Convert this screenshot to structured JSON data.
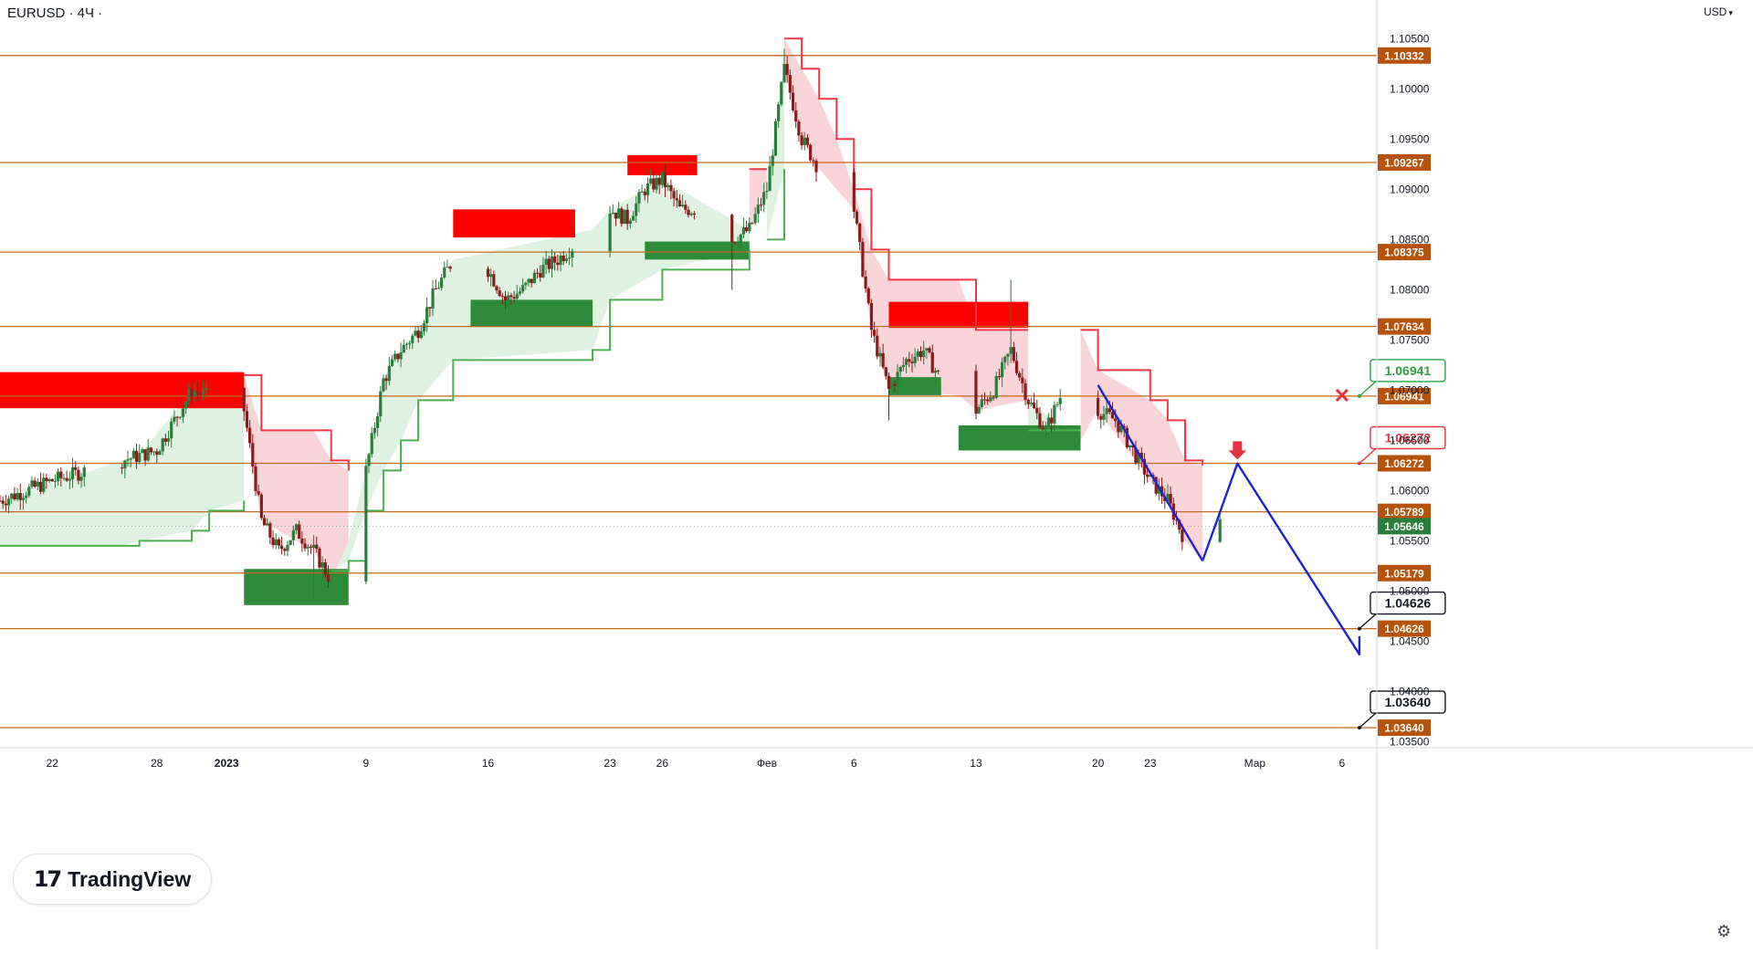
{
  "header": {
    "symbol": "EURUSD · 4Ч ·",
    "currency": "USD",
    "currency_chevron": "▾"
  },
  "logo": {
    "mark": "17",
    "text": "TradingView"
  },
  "settings_icon": "gear-icon",
  "colors": {
    "level_line": "#c26a1e",
    "level_tag": "#b45309",
    "supply_zone": "#ff0000",
    "demand_zone": "#2e8b3a",
    "bull_trail": "#4caf50",
    "bull_fill": "#d9f0dc",
    "bear_trail": "#f23645",
    "bear_fill": "#f8cdd2",
    "projection": "#1e22d6",
    "candle_up": "#2a7d3a",
    "candle_down": "#8b1a1a",
    "callout_green": "#2e9e42",
    "callout_red": "#e5343f",
    "callout_black": "#131722"
  },
  "chart_data": {
    "type": "candlestick",
    "symbol": "EURUSD",
    "timeframe": "4Ч",
    "price_axis": {
      "ylim": [
        1.0345,
        1.1063
      ],
      "ticks": [
        "1.10500",
        "1.10000",
        "1.09500",
        "1.09000",
        "1.08500",
        "1.08000",
        "1.07500",
        "1.07000",
        "1.06500",
        "1.06000",
        "1.05500",
        "1.05000",
        "1.04500",
        "1.04000",
        "1.03500"
      ],
      "current_price": "1.05646"
    },
    "time_axis": {
      "range": [
        "2022-12-19",
        "2023-03-08"
      ],
      "ticks": [
        {
          "label": "22",
          "date": "2022-12-22"
        },
        {
          "label": "28",
          "date": "2022-12-28"
        },
        {
          "label": "2023",
          "date": "2023-01-01",
          "bold": true
        },
        {
          "label": "9",
          "date": "2023-01-09"
        },
        {
          "label": "16",
          "date": "2023-01-16"
        },
        {
          "label": "23",
          "date": "2023-01-23"
        },
        {
          "label": "26",
          "date": "2023-01-26"
        },
        {
          "label": "Фев",
          "date": "2023-02-01"
        },
        {
          "label": "6",
          "date": "2023-02-06"
        },
        {
          "label": "13",
          "date": "2023-02-13"
        },
        {
          "label": "20",
          "date": "2023-02-20"
        },
        {
          "label": "23",
          "date": "2023-02-23"
        },
        {
          "label": "Мар",
          "date": "2023-03-01"
        },
        {
          "label": "6",
          "date": "2023-03-06"
        }
      ]
    },
    "price_path": [
      [
        "2022-12-19",
        1.059
      ],
      [
        "2022-12-22",
        1.061
      ],
      [
        "2022-12-26",
        1.063
      ],
      [
        "2022-12-28",
        1.064
      ],
      [
        "2022-12-30",
        1.07
      ],
      [
        "2023-01-02",
        1.068
      ],
      [
        "2023-01-03",
        1.057
      ],
      [
        "2023-01-04",
        1.054
      ],
      [
        "2023-01-05",
        1.056
      ],
      [
        "2023-01-06",
        1.054
      ],
      [
        "2023-01-07",
        1.051
      ],
      [
        "2023-01-08",
        1.055
      ],
      [
        "2023-01-09",
        1.062
      ],
      [
        "2023-01-10",
        1.071
      ],
      [
        "2023-01-11",
        1.074
      ],
      [
        "2023-01-12",
        1.076
      ],
      [
        "2023-01-13",
        1.08
      ],
      [
        "2023-01-14",
        1.083
      ],
      [
        "2023-01-16",
        1.082
      ],
      [
        "2023-01-17",
        1.079
      ],
      [
        "2023-01-18",
        1.08
      ],
      [
        "2023-01-19",
        1.082
      ],
      [
        "2023-01-20",
        1.083
      ],
      [
        "2023-01-22",
        1.086
      ],
      [
        "2023-01-23",
        1.088
      ],
      [
        "2023-01-24",
        1.087
      ],
      [
        "2023-01-25",
        1.09
      ],
      [
        "2023-01-26",
        1.091
      ],
      [
        "2023-01-27",
        1.088
      ],
      [
        "2023-01-29",
        1.088
      ],
      [
        "2023-01-30",
        1.085
      ],
      [
        "2023-01-31",
        1.086
      ],
      [
        "2023-02-01",
        1.09
      ],
      [
        "2023-02-02",
        1.102
      ],
      [
        "2023-02-03",
        1.095
      ],
      [
        "2023-02-04",
        1.092
      ],
      [
        "2023-02-06",
        1.088
      ],
      [
        "2023-02-07",
        1.076
      ],
      [
        "2023-02-08",
        1.07
      ],
      [
        "2023-02-09",
        1.073
      ],
      [
        "2023-02-10",
        1.074
      ],
      [
        "2023-02-11",
        1.071
      ],
      [
        "2023-02-13",
        1.068
      ],
      [
        "2023-02-14",
        1.07
      ],
      [
        "2023-02-15",
        1.074
      ],
      [
        "2023-02-16",
        1.069
      ],
      [
        "2023-02-17",
        1.066
      ],
      [
        "2023-02-18",
        1.07
      ],
      [
        "2023-02-19",
        1.065
      ],
      [
        "2023-02-20",
        1.068
      ],
      [
        "2023-02-21",
        1.067
      ],
      [
        "2023-02-22",
        1.064
      ],
      [
        "2023-02-23",
        1.061
      ],
      [
        "2023-02-24",
        1.059
      ],
      [
        "2023-02-25",
        1.055
      ],
      [
        "2023-02-26",
        1.053
      ],
      [
        "2023-02-27",
        1.0565
      ]
    ],
    "price_spikes": [
      [
        "2023-01-06",
        1.049
      ],
      [
        "2023-01-30",
        1.08
      ],
      [
        "2023-02-02",
        1.104
      ],
      [
        "2023-02-08",
        1.067
      ],
      [
        "2023-02-15",
        1.081
      ],
      [
        "2023-02-19",
        1.062
      ]
    ],
    "levels": [
      {
        "price": 1.10332,
        "label": "1.10332"
      },
      {
        "price": 1.09267,
        "label": "1.09267"
      },
      {
        "price": 1.08375,
        "label": "1.08375"
      },
      {
        "price": 1.07634,
        "label": "1.07634"
      },
      {
        "price": 1.06941,
        "label": "1.06941"
      },
      {
        "price": 1.06272,
        "label": "1.06272"
      },
      {
        "price": 1.05789,
        "label": "1.05789"
      },
      {
        "price": 1.05179,
        "label": "1.05179"
      },
      {
        "price": 1.04626,
        "label": "1.04626"
      },
      {
        "price": 1.0364,
        "label": "1.03640"
      }
    ],
    "supply_zones": [
      {
        "from": "2022-12-19",
        "to": "2023-01-02",
        "top": 1.0718,
        "bottom": 1.0682
      },
      {
        "from": "2023-01-14",
        "to": "2023-01-21",
        "top": 1.088,
        "bottom": 1.0852
      },
      {
        "from": "2023-01-24",
        "to": "2023-01-28",
        "top": 1.0934,
        "bottom": 1.0914
      },
      {
        "from": "2023-02-08",
        "to": "2023-02-16",
        "top": 1.0788,
        "bottom": 1.0762
      }
    ],
    "demand_zones": [
      {
        "from": "2023-01-02",
        "to": "2023-01-08",
        "top": 1.0522,
        "bottom": 1.0486
      },
      {
        "from": "2023-01-15",
        "to": "2023-01-22",
        "top": 1.079,
        "bottom": 1.0763
      },
      {
        "from": "2023-01-25",
        "to": "2023-01-31",
        "top": 1.0848,
        "bottom": 1.083
      },
      {
        "from": "2023-02-08",
        "to": "2023-02-11",
        "top": 1.0713,
        "bottom": 1.0695
      },
      {
        "from": "2023-02-12",
        "to": "2023-02-19",
        "top": 1.0665,
        "bottom": 1.064
      }
    ],
    "bull_trail": [
      [
        [
          "2022-12-19",
          1.0545
        ],
        [
          "2022-12-26",
          1.0545
        ],
        [
          "2022-12-27",
          1.055
        ],
        [
          "2022-12-30",
          1.056
        ],
        [
          "2022-12-31",
          1.058
        ],
        [
          "2023-01-02",
          1.059
        ]
      ],
      [
        [
          "2023-01-07",
          1.052
        ],
        [
          "2023-01-08",
          1.053
        ],
        [
          "2023-01-09",
          1.058
        ],
        [
          "2023-01-10",
          1.062
        ],
        [
          "2023-01-11",
          1.065
        ],
        [
          "2023-01-12",
          1.069
        ],
        [
          "2023-01-14",
          1.073
        ],
        [
          "2023-01-22",
          1.074
        ],
        [
          "2023-01-23",
          1.079
        ],
        [
          "2023-01-26",
          1.082
        ],
        [
          "2023-01-31",
          1.084
        ]
      ],
      [
        [
          "2023-02-01",
          1.085
        ],
        [
          "2023-02-02",
          1.092
        ]
      ],
      [
        [
          "2023-02-16",
          1.066
        ],
        [
          "2023-02-19",
          1.066
        ]
      ]
    ],
    "bear_trail": [
      [
        [
          "2023-01-02",
          1.0715
        ],
        [
          "2023-01-03",
          1.066
        ],
        [
          "2023-01-06",
          1.066
        ],
        [
          "2023-01-07",
          1.063
        ],
        [
          "2023-01-08",
          1.062
        ]
      ],
      [
        [
          "2023-01-31",
          1.092
        ],
        [
          "2023-02-01",
          1.092
        ]
      ],
      [
        [
          "2023-02-02",
          1.105
        ],
        [
          "2023-02-03",
          1.102
        ],
        [
          "2023-02-04",
          1.099
        ],
        [
          "2023-02-05",
          1.095
        ],
        [
          "2023-02-06",
          1.09
        ],
        [
          "2023-02-07",
          1.084
        ],
        [
          "2023-02-08",
          1.081
        ],
        [
          "2023-02-12",
          1.081
        ],
        [
          "2023-02-13",
          1.076
        ],
        [
          "2023-02-16",
          1.076
        ]
      ],
      [
        [
          "2023-02-19",
          1.076
        ],
        [
          "2023-02-20",
          1.072
        ],
        [
          "2023-02-23",
          1.069
        ],
        [
          "2023-02-24",
          1.067
        ],
        [
          "2023-02-25",
          1.063
        ],
        [
          "2023-02-26",
          1.0625
        ]
      ]
    ],
    "projection_lines": [
      [
        [
          "2023-02-20",
          1.0705
        ],
        [
          "2023-02-26",
          1.053
        ]
      ],
      [
        [
          "2023-02-26",
          1.053
        ],
        [
          "2023-02-28",
          1.0627
        ],
        [
          "2023-03-07",
          1.0437
        ],
        [
          "2023-03-07",
          1.0455
        ]
      ]
    ],
    "annotations": [
      {
        "text": "1.06941",
        "date": "2023-03-07",
        "price": 1.06941,
        "style": "green"
      },
      {
        "text": "1.06272",
        "date": "2023-03-07",
        "price": 1.06272,
        "style": "red"
      },
      {
        "text": "1.04626",
        "date": "2023-03-07",
        "price": 1.04626,
        "style": "black"
      },
      {
        "text": "1.03640",
        "date": "2023-03-07",
        "price": 1.0364,
        "style": "black"
      },
      {
        "marker": "cross",
        "date": "2023-03-06",
        "price": 1.0695
      },
      {
        "marker": "down-arrow",
        "date": "2023-02-28",
        "price": 1.064
      }
    ]
  }
}
